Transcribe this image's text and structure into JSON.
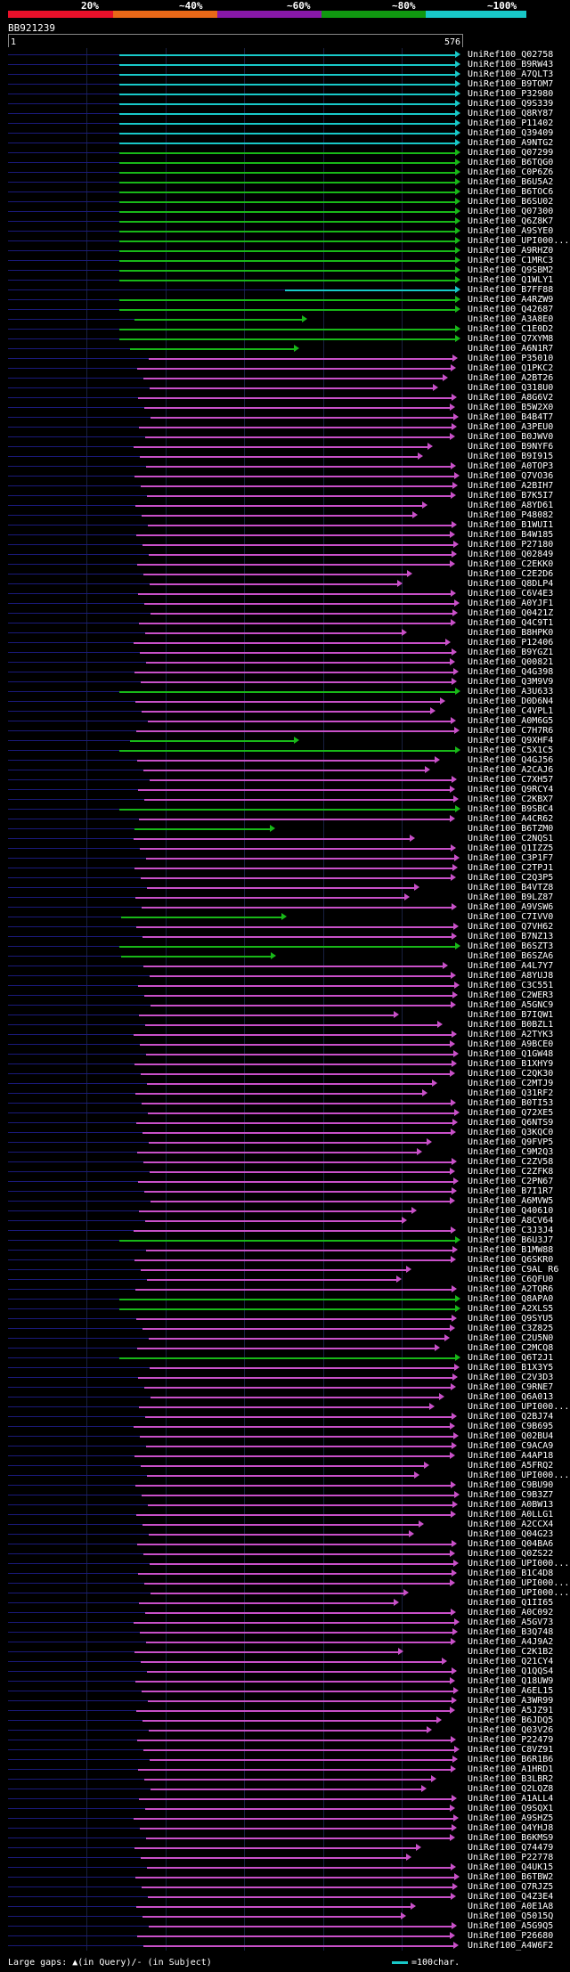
{
  "header": {
    "pct_labels": [
      "20%",
      "~40%",
      "~60%",
      "~80%",
      "~100%"
    ],
    "bar_colors": [
      "#e8102a",
      "#e86818",
      "#8818a8",
      "#109810",
      "#18c8c8"
    ],
    "query_id": "BB921239",
    "scale_start": "1",
    "scale_end": "576"
  },
  "footer": {
    "gaps_text": "Large gaps: ▲(in Query)/- (in Subject)",
    "legend_text": "=100char."
  },
  "colors": {
    "cyan": "#18c8c8",
    "green": "#18b818",
    "purple": "#c850c8"
  },
  "hits": [
    {
      "id": "UniRef100_Q02758",
      "c": "cyan"
    },
    {
      "id": "UniRef100_B9RW43",
      "c": "cyan"
    },
    {
      "id": "UniRef100_A7QLT3",
      "c": "cyan"
    },
    {
      "id": "UniRef100_B9TOM7",
      "c": "cyan"
    },
    {
      "id": "UniRef100_P32980",
      "c": "cyan"
    },
    {
      "id": "UniRef100_Q9S339",
      "c": "cyan"
    },
    {
      "id": "UniRef100_Q8RY87",
      "c": "cyan"
    },
    {
      "id": "UniRef100_P11402",
      "c": "cyan"
    },
    {
      "id": "UniRef100_Q39409",
      "c": "cyan"
    },
    {
      "id": "UniRef100_A9NTG2",
      "c": "cyan"
    },
    {
      "id": "UniRef100_Q07299",
      "c": "green"
    },
    {
      "id": "UniRef100_B6TQG0",
      "c": "green"
    },
    {
      "id": "UniRef100_C0P6Z6",
      "c": "green"
    },
    {
      "id": "UniRef100_B6U5A2",
      "c": "green"
    },
    {
      "id": "UniRef100_B6TOC6",
      "c": "green"
    },
    {
      "id": "UniRef100_B6SU02",
      "c": "green"
    },
    {
      "id": "UniRef100_Q07300",
      "c": "green"
    },
    {
      "id": "UniRef100_Q6Z8K7",
      "c": "green"
    },
    {
      "id": "UniRef100_A9SYE0",
      "c": "green"
    },
    {
      "id": "UniRef100_UPI000...",
      "c": "green"
    },
    {
      "id": "UniRef100_A9RHZ0",
      "c": "green"
    },
    {
      "id": "UniRef100_C1MRC3",
      "c": "green"
    },
    {
      "id": "UniRef100_Q9SBM2",
      "c": "green"
    },
    {
      "id": "UniRef100_Q1WLY1",
      "c": "green"
    },
    {
      "id": "UniRef100_B7FF88",
      "c": "cyan"
    },
    {
      "id": "UniRef100_A4RZW9",
      "c": "green"
    },
    {
      "id": "UniRef100_Q42687",
      "c": "green"
    },
    {
      "id": "UniRef100_A3A8E0",
      "c": "green"
    },
    {
      "id": "UniRef100_C1E0D2",
      "c": "green"
    },
    {
      "id": "UniRef100_Q7XYM8",
      "c": "green"
    },
    {
      "id": "UniRef100_A6N1R7",
      "c": "green"
    },
    {
      "id": "UniRef100_P35010",
      "c": "purple"
    },
    {
      "id": "UniRef100_Q1PKC2",
      "c": "purple"
    },
    {
      "id": "UniRef100_A2BT26",
      "c": "purple"
    },
    {
      "id": "UniRef100_Q318U0",
      "c": "purple"
    },
    {
      "id": "UniRef100_A8G6V2",
      "c": "purple"
    },
    {
      "id": "UniRef100_B5W2X0",
      "c": "purple"
    },
    {
      "id": "UniRef100_B4B4T7",
      "c": "purple"
    },
    {
      "id": "UniRef100_A3PEU0",
      "c": "purple"
    },
    {
      "id": "UniRef100_B0JWV0",
      "c": "purple"
    },
    {
      "id": "UniRef100_B9NYF6",
      "c": "purple"
    },
    {
      "id": "UniRef100_B9I915",
      "c": "purple"
    },
    {
      "id": "UniRef100_A0TOP3",
      "c": "purple"
    },
    {
      "id": "UniRef100_Q7VO36",
      "c": "purple"
    },
    {
      "id": "UniRef100_A2BIH7",
      "c": "purple"
    },
    {
      "id": "UniRef100_B7K5I7",
      "c": "purple"
    },
    {
      "id": "UniRef100_A8YD61",
      "c": "purple"
    },
    {
      "id": "UniRef100_P48082",
      "c": "purple"
    },
    {
      "id": "UniRef100_B1WUI1",
      "c": "purple"
    },
    {
      "id": "UniRef100_B4W185",
      "c": "purple"
    },
    {
      "id": "UniRef100_P27180",
      "c": "purple"
    },
    {
      "id": "UniRef100_Q02849",
      "c": "purple"
    },
    {
      "id": "UniRef100_C2EKK0",
      "c": "purple"
    },
    {
      "id": "UniRef100_C2E2D6",
      "c": "purple"
    },
    {
      "id": "UniRef100_Q8DLP4",
      "c": "purple"
    },
    {
      "id": "UniRef100_C6V4E3",
      "c": "purple"
    },
    {
      "id": "UniRef100_A0YJF1",
      "c": "purple"
    },
    {
      "id": "UniRef100_Q0421Z",
      "c": "purple"
    },
    {
      "id": "UniRef100_Q4C9T1",
      "c": "purple"
    },
    {
      "id": "UniRef100_B8HPK0",
      "c": "purple"
    },
    {
      "id": "UniRef100_P12406",
      "c": "purple"
    },
    {
      "id": "UniRef100_B9YGZ1",
      "c": "purple"
    },
    {
      "id": "UniRef100_Q00821",
      "c": "purple"
    },
    {
      "id": "UniRef100_Q4G398",
      "c": "purple"
    },
    {
      "id": "UniRef100_Q3M9V9",
      "c": "purple"
    },
    {
      "id": "UniRef100_A3U633",
      "c": "green"
    },
    {
      "id": "UniRef100_D0D6N4",
      "c": "purple"
    },
    {
      "id": "UniRef100_C4VPL1",
      "c": "purple"
    },
    {
      "id": "UniRef100_A0M6G5",
      "c": "purple"
    },
    {
      "id": "UniRef100_C7H7R6",
      "c": "purple"
    },
    {
      "id": "UniRef100_Q9XHF4",
      "c": "green"
    },
    {
      "id": "UniRef100_C5X1C5",
      "c": "green"
    },
    {
      "id": "UniRef100_Q4GJ56",
      "c": "purple"
    },
    {
      "id": "UniRef100_A2CAJ6",
      "c": "purple"
    },
    {
      "id": "UniRef100_C7XH57",
      "c": "purple"
    },
    {
      "id": "UniRef100_Q9RCY4",
      "c": "purple"
    },
    {
      "id": "UniRef100_C2KBX7",
      "c": "purple"
    },
    {
      "id": "UniRef100_B9SBC4",
      "c": "green"
    },
    {
      "id": "UniRef100_A4CR62",
      "c": "purple"
    },
    {
      "id": "UniRef100_B6TZM0",
      "c": "green"
    },
    {
      "id": "UniRef100_C2NQS1",
      "c": "purple"
    },
    {
      "id": "UniRef100_Q1IZZ5",
      "c": "purple"
    },
    {
      "id": "UniRef100_C3P1F7",
      "c": "purple"
    },
    {
      "id": "UniRef100_C2TPJ1",
      "c": "purple"
    },
    {
      "id": "UniRef100_C2Q3P5",
      "c": "purple"
    },
    {
      "id": "UniRef100_B4VTZ8",
      "c": "purple"
    },
    {
      "id": "UniRef100_B9LZ87",
      "c": "purple"
    },
    {
      "id": "UniRef100_A9VSW6",
      "c": "purple"
    },
    {
      "id": "UniRef100_C7IVV0",
      "c": "green"
    },
    {
      "id": "UniRef100_Q7VH62",
      "c": "purple"
    },
    {
      "id": "UniRef100_B7NZ13",
      "c": "purple"
    },
    {
      "id": "UniRef100_B6SZT3",
      "c": "green"
    },
    {
      "id": "UniRef100_B6SZA6",
      "c": "green"
    },
    {
      "id": "UniRef100_A4L7Y7",
      "c": "purple"
    },
    {
      "id": "UniRef100_A8YUJ8",
      "c": "purple"
    },
    {
      "id": "UniRef100_C3C551",
      "c": "purple"
    },
    {
      "id": "UniRef100_C2WER3",
      "c": "purple"
    },
    {
      "id": "UniRef100_A5GNC9",
      "c": "purple"
    },
    {
      "id": "UniRef100_B7IQW1",
      "c": "purple"
    },
    {
      "id": "UniRef100_B0BZL1",
      "c": "purple"
    },
    {
      "id": "UniRef100_A2TYK3",
      "c": "purple"
    },
    {
      "id": "UniRef100_A9BCE0",
      "c": "purple"
    },
    {
      "id": "UniRef100_Q1GW48",
      "c": "purple"
    },
    {
      "id": "UniRef100_B1XHY9",
      "c": "purple"
    },
    {
      "id": "UniRef100_C2QK30",
      "c": "purple"
    },
    {
      "id": "UniRef100_C2MTJ9",
      "c": "purple"
    },
    {
      "id": "UniRef100_Q31RF2",
      "c": "purple"
    },
    {
      "id": "UniRef100_B0TI53",
      "c": "purple"
    },
    {
      "id": "UniRef100_Q72XE5",
      "c": "purple"
    },
    {
      "id": "UniRef100_Q6NTS9",
      "c": "purple"
    },
    {
      "id": "UniRef100_Q3KQC0",
      "c": "purple"
    },
    {
      "id": "UniRef100_Q9FVP5",
      "c": "purple"
    },
    {
      "id": "UniRef100_C9M2Q3",
      "c": "purple"
    },
    {
      "id": "UniRef100_C2ZV58",
      "c": "purple"
    },
    {
      "id": "UniRef100_C2ZFK8",
      "c": "purple"
    },
    {
      "id": "UniRef100_C2PN67",
      "c": "purple"
    },
    {
      "id": "UniRef100_B7I1R7",
      "c": "purple"
    },
    {
      "id": "UniRef100_A6MVW5",
      "c": "purple"
    },
    {
      "id": "UniRef100_Q40610",
      "c": "purple"
    },
    {
      "id": "UniRef100_A8CV64",
      "c": "purple"
    },
    {
      "id": "UniRef100_C3J3J4",
      "c": "purple"
    },
    {
      "id": "UniRef100_B6U3J7",
      "c": "green"
    },
    {
      "id": "UniRef100_B1MW88",
      "c": "purple"
    },
    {
      "id": "UniRef100_Q6SKR0",
      "c": "purple"
    },
    {
      "id": "UniRef100_C9AL R6",
      "c": "purple"
    },
    {
      "id": "UniRef100_C6QFU0",
      "c": "purple"
    },
    {
      "id": "UniRef100_A2TQR6",
      "c": "purple"
    },
    {
      "id": "UniRef100_Q8APA0",
      "c": "green"
    },
    {
      "id": "UniRef100_A2XLS5",
      "c": "green"
    },
    {
      "id": "UniRef100_Q9SYU5",
      "c": "purple"
    },
    {
      "id": "UniRef100_C3Z825",
      "c": "purple"
    },
    {
      "id": "UniRef100_C2U5N0",
      "c": "purple"
    },
    {
      "id": "UniRef100_C2MCQ8",
      "c": "purple"
    },
    {
      "id": "UniRef100_Q6T2J1",
      "c": "green"
    },
    {
      "id": "UniRef100_B1X3Y5",
      "c": "purple"
    },
    {
      "id": "UniRef100_C2V3D3",
      "c": "purple"
    },
    {
      "id": "UniRef100_C9RNE7",
      "c": "purple"
    },
    {
      "id": "UniRef100_Q6A013",
      "c": "purple"
    },
    {
      "id": "UniRef100_UPI000...",
      "c": "purple"
    },
    {
      "id": "UniRef100_Q2BJ74",
      "c": "purple"
    },
    {
      "id": "UniRef100_C9B695",
      "c": "purple"
    },
    {
      "id": "UniRef100_Q02BU4",
      "c": "purple"
    },
    {
      "id": "UniRef100_C9ACA9",
      "c": "purple"
    },
    {
      "id": "UniRef100_A4AP18",
      "c": "purple"
    },
    {
      "id": "UniRef100_A5FRQ2",
      "c": "purple"
    },
    {
      "id": "UniRef100_UPI000...",
      "c": "purple"
    },
    {
      "id": "UniRef100_C9BU90",
      "c": "purple"
    },
    {
      "id": "UniRef100_C9B3Z7",
      "c": "purple"
    },
    {
      "id": "UniRef100_A0BW13",
      "c": "purple"
    },
    {
      "id": "UniRef100_A0LLG1",
      "c": "purple"
    },
    {
      "id": "UniRef100_A2CCX4",
      "c": "purple"
    },
    {
      "id": "UniRef100_Q04G23",
      "c": "purple"
    },
    {
      "id": "UniRef100_Q04BA6",
      "c": "purple"
    },
    {
      "id": "UniRef100_Q0ZS22",
      "c": "purple"
    },
    {
      "id": "UniRef100_UPI000...",
      "c": "purple"
    },
    {
      "id": "UniRef100_B1C4D8",
      "c": "purple"
    },
    {
      "id": "UniRef100_UPI000...",
      "c": "purple"
    },
    {
      "id": "UniRef100_UPI000...",
      "c": "purple"
    },
    {
      "id": "UniRef100_Q1II65",
      "c": "purple"
    },
    {
      "id": "UniRef100_A0C092",
      "c": "purple"
    },
    {
      "id": "UniRef100_A5GV73",
      "c": "purple"
    },
    {
      "id": "UniRef100_B3Q748",
      "c": "purple"
    },
    {
      "id": "UniRef100_A4J9A2",
      "c": "purple"
    },
    {
      "id": "UniRef100_C2K1B2",
      "c": "purple"
    },
    {
      "id": "UniRef100_Q21CY4",
      "c": "purple"
    },
    {
      "id": "UniRef100_Q1QQS4",
      "c": "purple"
    },
    {
      "id": "UniRef100_Q18UW9",
      "c": "purple"
    },
    {
      "id": "UniRef100_A6EL15",
      "c": "purple"
    },
    {
      "id": "UniRef100_A3WR99",
      "c": "purple"
    },
    {
      "id": "UniRef100_A5JZ91",
      "c": "purple"
    },
    {
      "id": "UniRef100_B6JDQ5",
      "c": "purple"
    },
    {
      "id": "UniRef100_Q03V26",
      "c": "purple"
    },
    {
      "id": "UniRef100_P22479",
      "c": "purple"
    },
    {
      "id": "UniRef100_C8VZ91",
      "c": "purple"
    },
    {
      "id": "UniRef100_B6R1B6",
      "c": "purple"
    },
    {
      "id": "UniRef100_A1HRD1",
      "c": "purple"
    },
    {
      "id": "UniRef100_B3LBR2",
      "c": "purple"
    },
    {
      "id": "UniRef100_Q2LQZ8",
      "c": "purple"
    },
    {
      "id": "UniRef100_A1ALL4",
      "c": "purple"
    },
    {
      "id": "UniRef100_Q9SQX1",
      "c": "purple"
    },
    {
      "id": "UniRef100_A9SHZ5",
      "c": "purple"
    },
    {
      "id": "UniRef100_Q4YHJ8",
      "c": "purple"
    },
    {
      "id": "UniRef100_B6KMS9",
      "c": "purple"
    },
    {
      "id": "UniRef100_Q74479",
      "c": "purple"
    },
    {
      "id": "UniRef100_P22778",
      "c": "purple"
    },
    {
      "id": "UniRef100_Q4UK15",
      "c": "purple"
    },
    {
      "id": "UniRef100_B6TBW2",
      "c": "purple"
    },
    {
      "id": "UniRef100_Q7RJZ5",
      "c": "purple"
    },
    {
      "id": "UniRef100_Q4Z3E4",
      "c": "purple"
    },
    {
      "id": "UniRef100_A0E1A8",
      "c": "purple"
    },
    {
      "id": "UniRef100_Q5015Q",
      "c": "purple"
    },
    {
      "id": "UniRef100_A5G9Q5",
      "c": "purple"
    },
    {
      "id": "UniRef100_P26680",
      "c": "purple"
    },
    {
      "id": "UniRef100_A4W6F2",
      "c": "purple"
    }
  ]
}
